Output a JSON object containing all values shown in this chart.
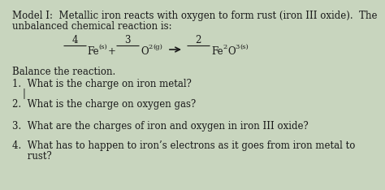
{
  "bg_color": "#c8d5be",
  "text_color": "#1a1a1a",
  "title_line1": "Model I:  Metallic iron reacts with oxygen to form rust (iron III oxide).  The",
  "title_line2": "unbalanced chemical reaction is:",
  "balance_header": "Balance the reaction.",
  "q1": "1.  What is the charge on iron metal?",
  "q2": "2.  What is the charge on oxygen gas?",
  "q3": "3.  What are the charges of iron and oxygen in iron III oxide?",
  "q4": "4.  What has to happen to iron’s electrons as it goes from iron metal to",
  "q4b": "     rust?",
  "fs_title": 8.5,
  "fs_eq": 8.5,
  "fs_sub": 6.0,
  "fs_body": 8.5
}
